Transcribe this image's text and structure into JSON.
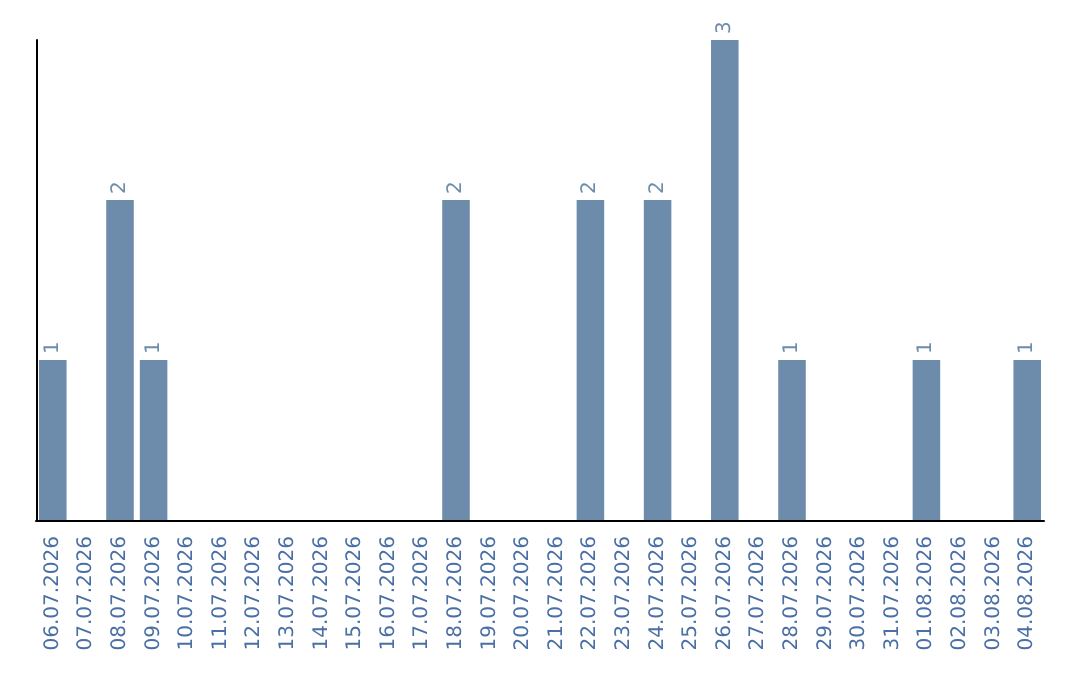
{
  "chart_data": {
    "type": "bar",
    "categories": [
      "06.07.2026",
      "07.07.2026",
      "08.07.2026",
      "09.07.2026",
      "10.07.2026",
      "11.07.2026",
      "12.07.2026",
      "13.07.2026",
      "14.07.2026",
      "15.07.2026",
      "16.07.2026",
      "17.07.2026",
      "18.07.2026",
      "19.07.2026",
      "20.07.2026",
      "21.07.2026",
      "22.07.2026",
      "23.07.2026",
      "24.07.2026",
      "25.07.2026",
      "26.07.2026",
      "27.07.2026",
      "28.07.2026",
      "29.07.2026",
      "30.07.2026",
      "31.07.2026",
      "01.08.2026",
      "02.08.2026",
      "03.08.2026",
      "04.08.2026"
    ],
    "values": [
      1,
      0,
      2,
      1,
      0,
      0,
      0,
      0,
      0,
      0,
      0,
      0,
      2,
      0,
      0,
      0,
      2,
      0,
      2,
      0,
      3,
      0,
      1,
      0,
      0,
      0,
      1,
      0,
      0,
      1
    ],
    "value_labels": [
      "1",
      null,
      "2",
      "1",
      null,
      null,
      null,
      null,
      null,
      null,
      null,
      null,
      "2",
      null,
      null,
      null,
      "2",
      null,
      "2",
      null,
      "3",
      null,
      "1",
      null,
      null,
      null,
      "1",
      null,
      null,
      "1"
    ],
    "color": "#6d8cab",
    "grid": false,
    "tick_labels": "x"
  }
}
